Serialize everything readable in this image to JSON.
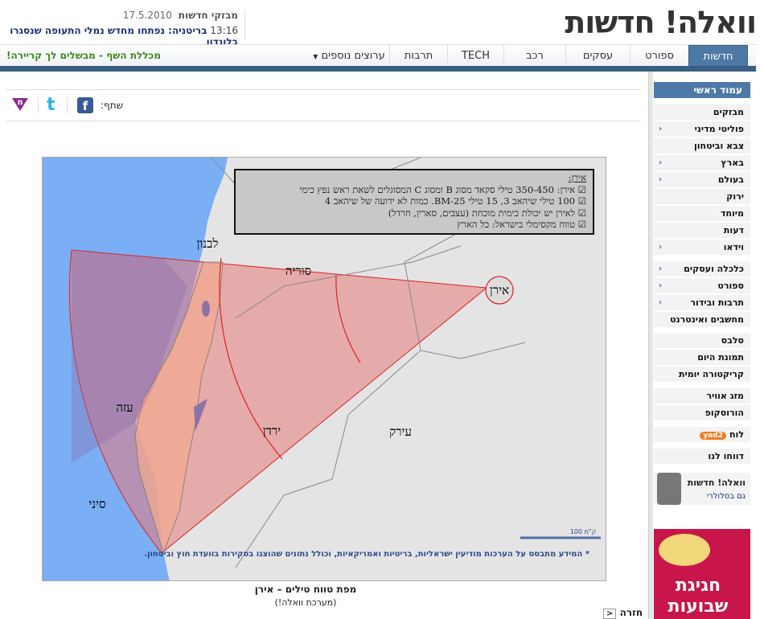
{
  "header": {
    "logo": "וואלה! חדשות",
    "ticker_label": "מבזקי חדשות",
    "date": "17.5.2010",
    "time": "13:16",
    "headline": "בריטניה: נפתחו מחדש נמלי התעופה שנסגרו בלונדון"
  },
  "nav": {
    "tabs": [
      {
        "label": "חדשות",
        "active": true
      },
      {
        "label": "ספורט"
      },
      {
        "label": "עסקים"
      },
      {
        "label": "רכב"
      },
      {
        "label": "TECH"
      },
      {
        "label": "תרבות"
      },
      {
        "label": "ערוצים נוספים"
      }
    ],
    "promo": "מכללת השף - מבשלים לך קריירה!",
    "accent": "#4d79a6"
  },
  "share": {
    "label": "שתף:",
    "icons": [
      "facebook-icon",
      "twitter-icon",
      "mekusharim-icon"
    ]
  },
  "sidebar": {
    "head": "עמוד ראשי",
    "items": [
      {
        "label": "מבזקים",
        "arrow": false
      },
      {
        "label": "פוליטי מדיני",
        "arrow": true
      },
      {
        "label": "צבא וביטחון",
        "arrow": false
      },
      {
        "label": "בארץ",
        "arrow": true
      },
      {
        "label": "בעולם",
        "arrow": true
      },
      {
        "label": "ירוק",
        "arrow": false
      },
      {
        "label": "מיוחד",
        "arrow": false
      },
      {
        "label": "דעות",
        "arrow": false
      },
      {
        "label": "וידאו",
        "arrow": true
      },
      {
        "label": "כלכלה ועסקים",
        "arrow": true
      },
      {
        "label": "ספורט",
        "arrow": true
      },
      {
        "label": "תרבות ובידור",
        "arrow": true
      },
      {
        "label": "מחשבים ואינטרנט",
        "arrow": false
      },
      {
        "label": "סלבס",
        "arrow": false
      },
      {
        "label": "תמונת היום",
        "arrow": false
      },
      {
        "label": "קריקטורה יומית",
        "arrow": false
      },
      {
        "label": "מזג אוויר",
        "arrow": false
      },
      {
        "label": "הורוסקופ",
        "arrow": false
      },
      {
        "label": "לוח",
        "arrow": false
      },
      {
        "label": "דווחו לנו",
        "arrow": false
      }
    ],
    "yad2": "yad2",
    "mobile_title": "וואלה! חדשות",
    "mobile_sub": "גם בסלולרי",
    "ad_text": "חגיגת שבועות"
  },
  "map": {
    "legend_title": "אירן:",
    "legend_lines": [
      "אירן: 350-450 טילי סקאד מסוג B ומסוג C המסוגלים לשאת ראש נפץ כימי",
      "100 טילי שיהאב 3, 15 טילי BM-25. כמות לא ידועה של שיהאב 4",
      "לאירן יש יכולת כימית מוכחת (עצבים, סארין, חרדל)",
      "טווח מקסימלי בישראל: כל הארץ"
    ],
    "labels": {
      "lebanon": "לבנון",
      "syria": "סוריה",
      "iran": "אירן",
      "gaza": "עזה",
      "jordan": "ירדן",
      "iraq": "עירק",
      "sinai": "סיני"
    },
    "scale": "100 ק\"מ",
    "footnote": "* המידע מתבסס על הערכות מודיעין ישראליות, בריטיות ואמריקאיות, וכולל נתונים שהוצגו בסקירות בוועדת חוץ וביטחון.",
    "caption": "מפת טווח טילים – אירן",
    "credit": "(מערכת וואלה!)"
  },
  "back": "חזרה"
}
